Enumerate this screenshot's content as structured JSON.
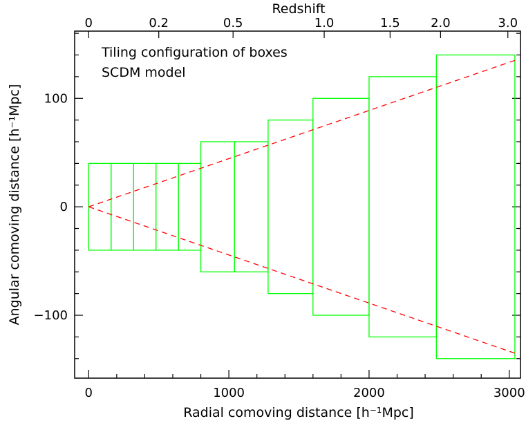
{
  "chart_data": {
    "type": "line",
    "title": "",
    "annotations": [
      "Tiling configuration of boxes",
      "SCDM model"
    ],
    "xlabel": "Radial comoving distance [h⁻¹Mpc]",
    "ylabel": "Angular comoving distance [h⁻¹Mpc]",
    "top_axis_label": "Redshift",
    "xlim": [
      -100,
      3080
    ],
    "ylim": [
      -158,
      162
    ],
    "x_ticks": [
      {
        "value": 0,
        "label": "0"
      },
      {
        "value": 1000,
        "label": "1000"
      },
      {
        "value": 2000,
        "label": "2000"
      },
      {
        "value": 3000,
        "label": "3000"
      }
    ],
    "y_ticks": [
      {
        "value": 100,
        "label": "100"
      },
      {
        "value": 0,
        "label": "0"
      },
      {
        "value": -100,
        "label": "−100"
      }
    ],
    "top_ticks": [
      {
        "x": 0,
        "label": "0"
      },
      {
        "x": 500,
        "label": "0.2"
      },
      {
        "x": 1030,
        "label": "0.5"
      },
      {
        "x": 1680,
        "label": "1.0"
      },
      {
        "x": 2150,
        "label": "1.5"
      },
      {
        "x": 2510,
        "label": "2.0"
      },
      {
        "x": 2990,
        "label": "3.0"
      }
    ],
    "boxes": [
      {
        "x0": 0,
        "x1": 160,
        "half_width": 40
      },
      {
        "x0": 160,
        "x1": 320,
        "half_width": 40
      },
      {
        "x0": 320,
        "x1": 480,
        "half_width": 40
      },
      {
        "x0": 480,
        "x1": 640,
        "half_width": 40
      },
      {
        "x0": 640,
        "x1": 800,
        "half_width": 40
      },
      {
        "x0": 800,
        "x1": 1040,
        "half_width": 60
      },
      {
        "x0": 1040,
        "x1": 1280,
        "half_width": 60
      },
      {
        "x0": 1280,
        "x1": 1600,
        "half_width": 80
      },
      {
        "x0": 1600,
        "x1": 2000,
        "half_width": 100
      },
      {
        "x0": 2000,
        "x1": 2480,
        "half_width": 120
      },
      {
        "x0": 2480,
        "x1": 3040,
        "half_width": 140
      }
    ],
    "cone_lines": [
      {
        "x": [
          0,
          3040
        ],
        "y": [
          0,
          135
        ]
      },
      {
        "x": [
          0,
          3040
        ],
        "y": [
          0,
          -135
        ]
      }
    ],
    "colors": {
      "boxes": "#00ff00",
      "cone": "#ff0000",
      "axes": "#000000"
    }
  }
}
